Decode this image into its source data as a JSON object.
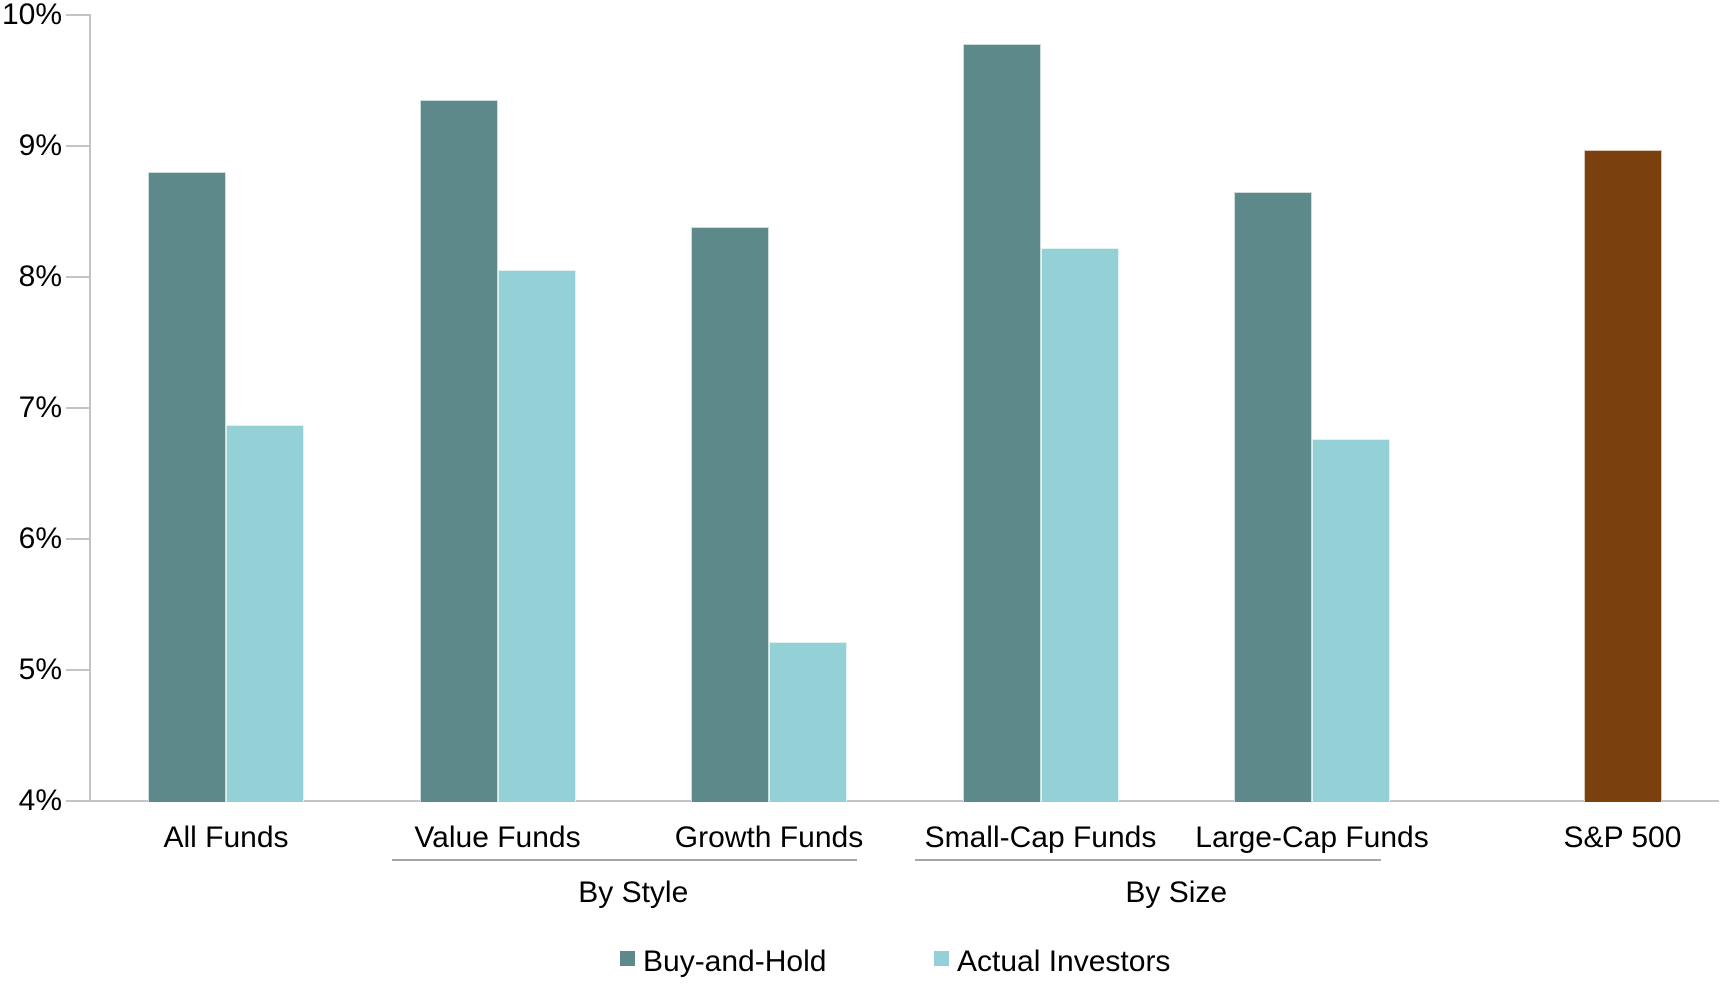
{
  "chart_data": {
    "type": "bar",
    "title": "",
    "xlabel": "",
    "ylabel": "",
    "categories": [
      "All Funds",
      "Value Funds",
      "Growth Funds",
      "Small-Cap Funds",
      "Large-Cap Funds",
      "S&P 500"
    ],
    "series": [
      {
        "name": "Buy-and-Hold",
        "color": "#5E898B",
        "values": [
          8.8,
          9.35,
          8.38,
          9.78,
          8.65,
          null
        ]
      },
      {
        "name": "Actual Investors",
        "color": "#93D1D6",
        "values": [
          6.87,
          8.05,
          5.21,
          8.22,
          6.76,
          null
        ]
      },
      {
        "name": "S&P 500",
        "color": "#7A400D",
        "values": [
          null,
          null,
          null,
          null,
          null,
          8.97
        ]
      }
    ],
    "ylim": [
      4,
      10
    ],
    "y_ticks": [
      {
        "value": 10,
        "label": "10%"
      },
      {
        "value": 9,
        "label": "9%"
      },
      {
        "value": 8,
        "label": "8%"
      },
      {
        "value": 7,
        "label": "7%"
      },
      {
        "value": 6,
        "label": "6%"
      },
      {
        "value": 5,
        "label": "5%"
      },
      {
        "value": 4,
        "label": "4%"
      }
    ],
    "grid": false,
    "category_groups": [
      {
        "label": "By Style",
        "from_index": 1,
        "to_index": 2
      },
      {
        "label": "By Size",
        "from_index": 3,
        "to_index": 4
      }
    ],
    "legend_position": "bottom",
    "legend": [
      {
        "label": "Buy-and-Hold",
        "color": "#5E898B"
      },
      {
        "label": "Actual Investors",
        "color": "#93D1D6"
      }
    ],
    "axis_color": "#C3C3C3",
    "separator_color": "#A6A6A6",
    "text_color": "#000000"
  }
}
